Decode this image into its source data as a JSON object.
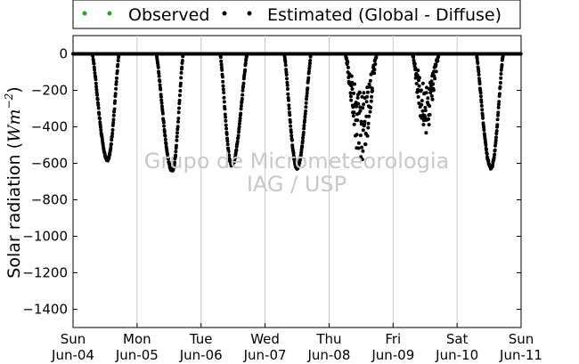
{
  "chart_data": {
    "type": "scatter",
    "title": "",
    "ylabel_text": "Solar radiation (",
    "ylabel_math": "Wm",
    "ylabel_exp": "−2",
    "ylabel_close": ")",
    "ylim": [
      -1500,
      100
    ],
    "xlim": [
      0,
      7
    ],
    "y_ticks": [
      0,
      -200,
      -400,
      -600,
      -800,
      -1000,
      -1200,
      -1400
    ],
    "x_ticks": [
      {
        "x": 0,
        "day": "Sun",
        "date": "Jun-04"
      },
      {
        "x": 1,
        "day": "Mon",
        "date": "Jun-05"
      },
      {
        "x": 2,
        "day": "Tue",
        "date": "Jun-06"
      },
      {
        "x": 3,
        "day": "Wed",
        "date": "Jun-07"
      },
      {
        "x": 4,
        "day": "Thu",
        "date": "Jun-08"
      },
      {
        "x": 5,
        "day": "Fri",
        "date": "Jun-09"
      },
      {
        "x": 6,
        "day": "Sat",
        "date": "Jun-10"
      },
      {
        "x": 7,
        "day": "Sun",
        "date": "Jun-11"
      }
    ],
    "grid": "vertical",
    "legend": {
      "placement": "top-center",
      "entries": [
        {
          "name": "Observed",
          "color": "#2ca02c"
        },
        {
          "name": "Estimated (Global - Diffuse)",
          "color": "#000000"
        }
      ]
    },
    "series": [
      {
        "name": "Estimated (Global - Diffuse)",
        "color": "#000000",
        "daily_peaks": [
          {
            "day": 0,
            "start": 0.3,
            "end": 0.72,
            "peak_x": 0.54,
            "peak": -580
          },
          {
            "day": 1,
            "start": 0.3,
            "end": 0.72,
            "peak_x": 0.55,
            "peak": -640
          },
          {
            "day": 2,
            "start": 0.3,
            "end": 0.72,
            "peak_x": 0.48,
            "peak": -610
          },
          {
            "day": 3,
            "start": 0.3,
            "end": 0.72,
            "peak_x": 0.5,
            "peak": -625
          },
          {
            "day": 4,
            "start": 0.25,
            "end": 0.75,
            "peak_x": 0.5,
            "peak": -600,
            "cloudy": true
          },
          {
            "day": 5,
            "start": 0.3,
            "end": 0.72,
            "peak_x": 0.5,
            "peak": -450,
            "cloudy": true
          },
          {
            "day": 6,
            "start": 0.3,
            "end": 0.72,
            "peak_x": 0.53,
            "peak": -625
          }
        ]
      }
    ],
    "watermark": [
      "Grupo de Micrometeorologia",
      "IAG / USP"
    ]
  }
}
